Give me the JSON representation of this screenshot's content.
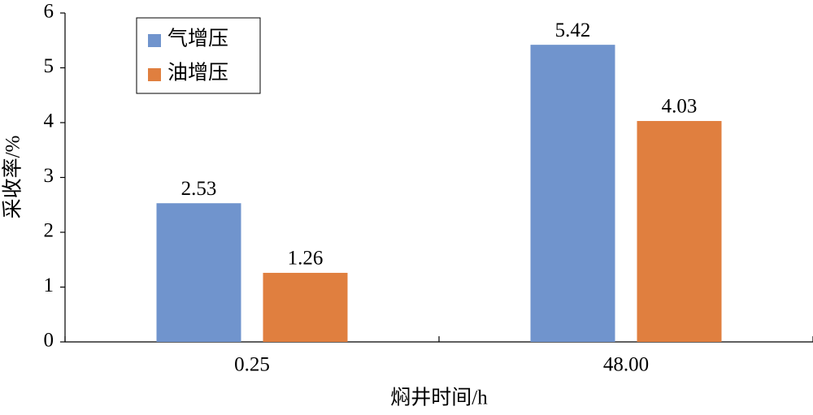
{
  "chart_data": {
    "type": "bar",
    "x_label": "焖井时间/h",
    "y_label": "采收率/%",
    "categories": [
      "0.25",
      "48.00"
    ],
    "series": [
      {
        "name": "气增压",
        "color": "#7094cd",
        "values": [
          2.53,
          5.42
        ]
      },
      {
        "name": "油增压",
        "color": "#e07f3f",
        "values": [
          1.26,
          4.03
        ]
      }
    ],
    "ylim": [
      0,
      6
    ],
    "yticks": [
      0,
      1,
      2,
      3,
      4,
      5,
      6
    ],
    "grid": false,
    "legend": "upper left"
  }
}
